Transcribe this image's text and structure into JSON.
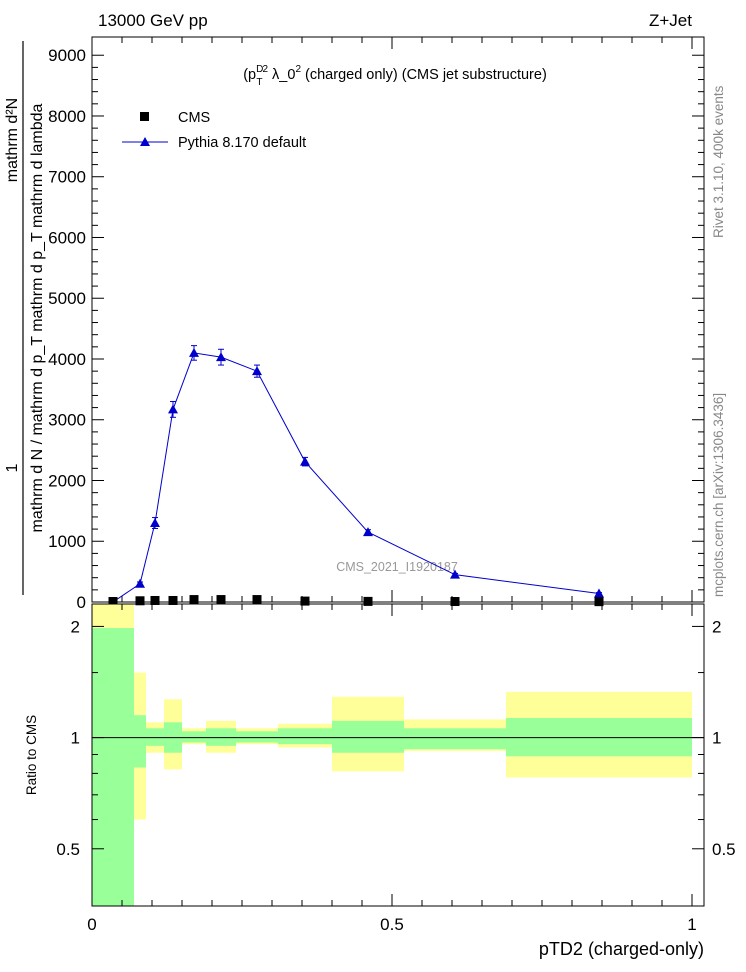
{
  "header": {
    "left": "13000 GeV pp",
    "right": "Z+Jet"
  },
  "side_labels": {
    "rivet": "Rivet 3.1.10,  400k events",
    "mcplots": "mcplots.cern.ch [arXiv:1306.3436]"
  },
  "watermark": "CMS_2021_I1920187",
  "colors": {
    "pythia": "#0000cc",
    "data": "#000000",
    "band_inner": "#99ff99",
    "band_outer": "#ffff99"
  },
  "chart_data": [
    {
      "type": "line",
      "title": "(p_T^D)^2 λ_0^2 (charged only) (CMS jet substructure)",
      "title_parts": {
        "open": "(p",
        "sup": "D",
        "sub": "T",
        "close_sup": "2",
        "mid": " λ_0",
        "mid_sup": "2",
        "rest": " (charged only) (CMS jet substructure)"
      },
      "ylabel": {
        "one": "1",
        "numerator": "mathrm d²N",
        "denominator": "mathrm d N / mathrm d p_T mathrm d p_T mathrm d lambda"
      },
      "xlabel": "pTD2 (charged-only)",
      "xlim": [
        0,
        1.02
      ],
      "ylim": [
        0,
        9300
      ],
      "y_ticks": [
        0,
        1000,
        2000,
        3000,
        4000,
        5000,
        6000,
        7000,
        8000,
        9000
      ],
      "y_tick_labels": [
        "0",
        "1000",
        "2000",
        "3000",
        "4000",
        "5000",
        "6000",
        "7000",
        "8000",
        "9000"
      ],
      "legend": [
        {
          "label": "CMS",
          "marker": "square"
        },
        {
          "label": "Pythia 8.170 default",
          "marker": "triangle"
        }
      ],
      "legend_position": "top-left",
      "series": [
        {
          "name": "CMS",
          "x": [
            0.035,
            0.08,
            0.105,
            0.135,
            0.17,
            0.215,
            0.275,
            0.355,
            0.46,
            0.605,
            0.845
          ],
          "y": [
            8,
            20,
            25,
            25,
            40,
            40,
            40,
            15,
            10,
            8,
            6
          ]
        },
        {
          "name": "Pythia 8.170 default",
          "x": [
            0.035,
            0.08,
            0.105,
            0.135,
            0.17,
            0.215,
            0.275,
            0.355,
            0.46,
            0.605,
            0.845
          ],
          "y": [
            0,
            300,
            1300,
            3170,
            4100,
            4030,
            3800,
            2310,
            1150,
            450,
            140
          ],
          "yerr": [
            0,
            30,
            90,
            130,
            120,
            130,
            100,
            70,
            40,
            20,
            15
          ]
        }
      ]
    },
    {
      "type": "area",
      "ylabel": "Ratio to CMS",
      "xlim": [
        0,
        1.02
      ],
      "ylim": [
        0.35,
        2.3
      ],
      "log_y": true,
      "y_ticks": [
        0.5,
        1,
        2
      ],
      "y_tick_labels": [
        "0.5",
        "1",
        "2"
      ],
      "x_ticks": [
        0,
        0.5,
        1
      ],
      "x_tick_labels": [
        "0",
        "0.5",
        "1"
      ],
      "reference_line": 1,
      "bins": [
        0,
        0.07,
        0.09,
        0.12,
        0.15,
        0.19,
        0.24,
        0.31,
        0.4,
        0.52,
        0.69,
        1.0
      ],
      "band_inner": {
        "low": [
          0.35,
          0.83,
          0.95,
          0.91,
          0.97,
          0.95,
          0.97,
          0.96,
          0.91,
          0.93,
          0.89
        ],
        "high": [
          1.98,
          1.15,
          1.06,
          1.1,
          1.04,
          1.06,
          1.04,
          1.06,
          1.11,
          1.06,
          1.13
        ]
      },
      "band_outer": {
        "low": [
          0.35,
          0.6,
          0.91,
          0.82,
          0.96,
          0.91,
          0.96,
          0.94,
          0.81,
          0.92,
          0.78
        ],
        "high": [
          2.3,
          1.5,
          1.1,
          1.27,
          1.06,
          1.11,
          1.06,
          1.09,
          1.29,
          1.12,
          1.33
        ]
      }
    }
  ]
}
